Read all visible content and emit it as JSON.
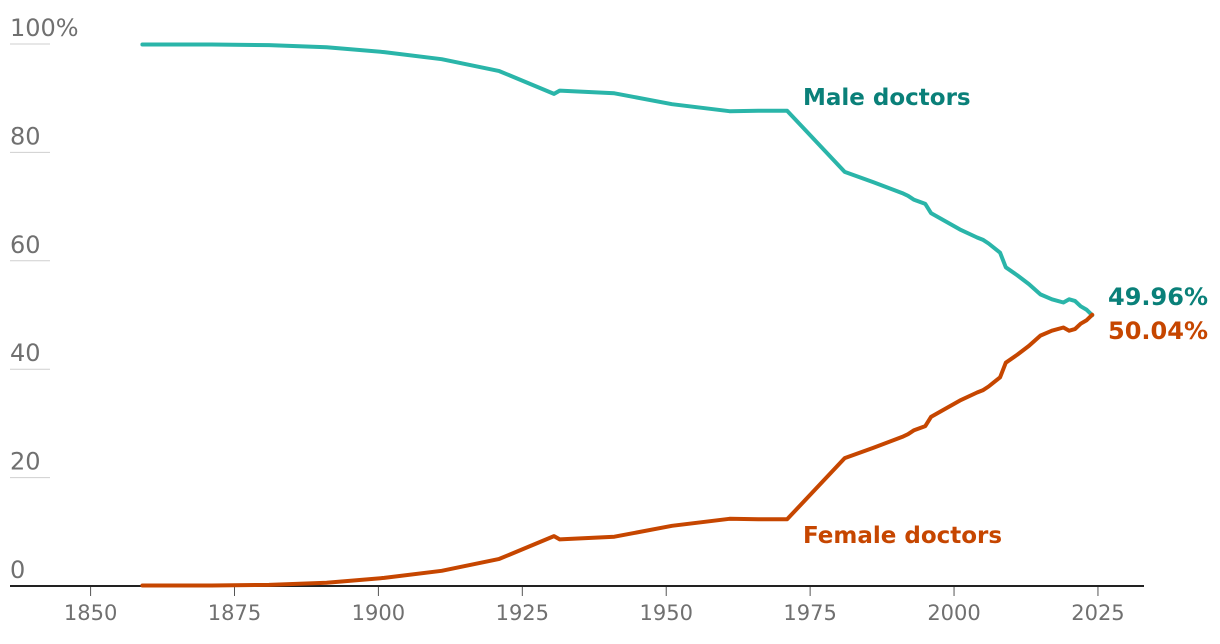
{
  "chart_data": {
    "type": "line",
    "xlim": [
      1836,
      2033
    ],
    "ylim": [
      0,
      100
    ],
    "x_ticks": [
      {
        "value": 1850,
        "label": "1850"
      },
      {
        "value": 1875,
        "label": "1875"
      },
      {
        "value": 1900,
        "label": "1900"
      },
      {
        "value": 1925,
        "label": "1925"
      },
      {
        "value": 1950,
        "label": "1950"
      },
      {
        "value": 1975,
        "label": "1975"
      },
      {
        "value": 2000,
        "label": "2000"
      },
      {
        "value": 2025,
        "label": "2025"
      }
    ],
    "y_ticks": [
      {
        "value": 100,
        "label": "100%"
      },
      {
        "value": 80,
        "label": "80"
      },
      {
        "value": 60,
        "label": "60"
      },
      {
        "value": 40,
        "label": "40"
      },
      {
        "value": 20,
        "label": "20"
      },
      {
        "value": 0,
        "label": "0"
      }
    ],
    "grid": true,
    "series": [
      {
        "name": "Male doctors",
        "color": "#2ab5a9",
        "label_color": "#0a8079",
        "end_label": "49.96%",
        "points": [
          [
            1859,
            99.9
          ],
          [
            1871,
            99.9
          ],
          [
            1881,
            99.8
          ],
          [
            1891,
            99.4
          ],
          [
            1901,
            98.5
          ],
          [
            1911,
            97.2
          ],
          [
            1921,
            95.0
          ],
          [
            1930.5,
            90.8
          ],
          [
            1931.5,
            91.4
          ],
          [
            1941,
            90.9
          ],
          [
            1951,
            88.9
          ],
          [
            1961,
            87.6
          ],
          [
            1966,
            87.7
          ],
          [
            1971,
            87.7
          ],
          [
            1981,
            76.4
          ],
          [
            1986,
            74.5
          ],
          [
            1991,
            72.5
          ],
          [
            1992,
            72.0
          ],
          [
            1993,
            71.3
          ],
          [
            1995,
            70.5
          ],
          [
            1996,
            68.8
          ],
          [
            1998,
            67.6
          ],
          [
            2001,
            65.8
          ],
          [
            2004,
            64.3
          ],
          [
            2005,
            63.9
          ],
          [
            2006,
            63.2
          ],
          [
            2008,
            61.5
          ],
          [
            2009,
            58.8
          ],
          [
            2011,
            57.3
          ],
          [
            2013,
            55.7
          ],
          [
            2015,
            53.8
          ],
          [
            2017,
            52.9
          ],
          [
            2019,
            52.3
          ],
          [
            2020,
            52.9
          ],
          [
            2021,
            52.6
          ],
          [
            2022,
            51.6
          ],
          [
            2023,
            51.0
          ],
          [
            2024,
            49.96
          ]
        ]
      },
      {
        "name": "Female doctors",
        "color": "#c64600",
        "label_color": "#c64600",
        "end_label": "50.04%",
        "points": [
          [
            1859,
            0.1
          ],
          [
            1871,
            0.1
          ],
          [
            1881,
            0.2
          ],
          [
            1891,
            0.6
          ],
          [
            1901,
            1.5
          ],
          [
            1911,
            2.8
          ],
          [
            1921,
            5.0
          ],
          [
            1930.5,
            9.2
          ],
          [
            1931.5,
            8.6
          ],
          [
            1941,
            9.1
          ],
          [
            1951,
            11.1
          ],
          [
            1961,
            12.4
          ],
          [
            1966,
            12.3
          ],
          [
            1971,
            12.3
          ],
          [
            1981,
            23.6
          ],
          [
            1986,
            25.5
          ],
          [
            1991,
            27.5
          ],
          [
            1992,
            28.0
          ],
          [
            1993,
            28.7
          ],
          [
            1995,
            29.5
          ],
          [
            1996,
            31.2
          ],
          [
            1998,
            32.4
          ],
          [
            2001,
            34.2
          ],
          [
            2004,
            35.7
          ],
          [
            2005,
            36.1
          ],
          [
            2006,
            36.8
          ],
          [
            2008,
            38.5
          ],
          [
            2009,
            41.2
          ],
          [
            2011,
            42.7
          ],
          [
            2013,
            44.3
          ],
          [
            2015,
            46.2
          ],
          [
            2017,
            47.1
          ],
          [
            2019,
            47.7
          ],
          [
            2020,
            47.1
          ],
          [
            2021,
            47.4
          ],
          [
            2022,
            48.4
          ],
          [
            2023,
            49.0
          ],
          [
            2024,
            50.04
          ]
        ]
      }
    ]
  }
}
